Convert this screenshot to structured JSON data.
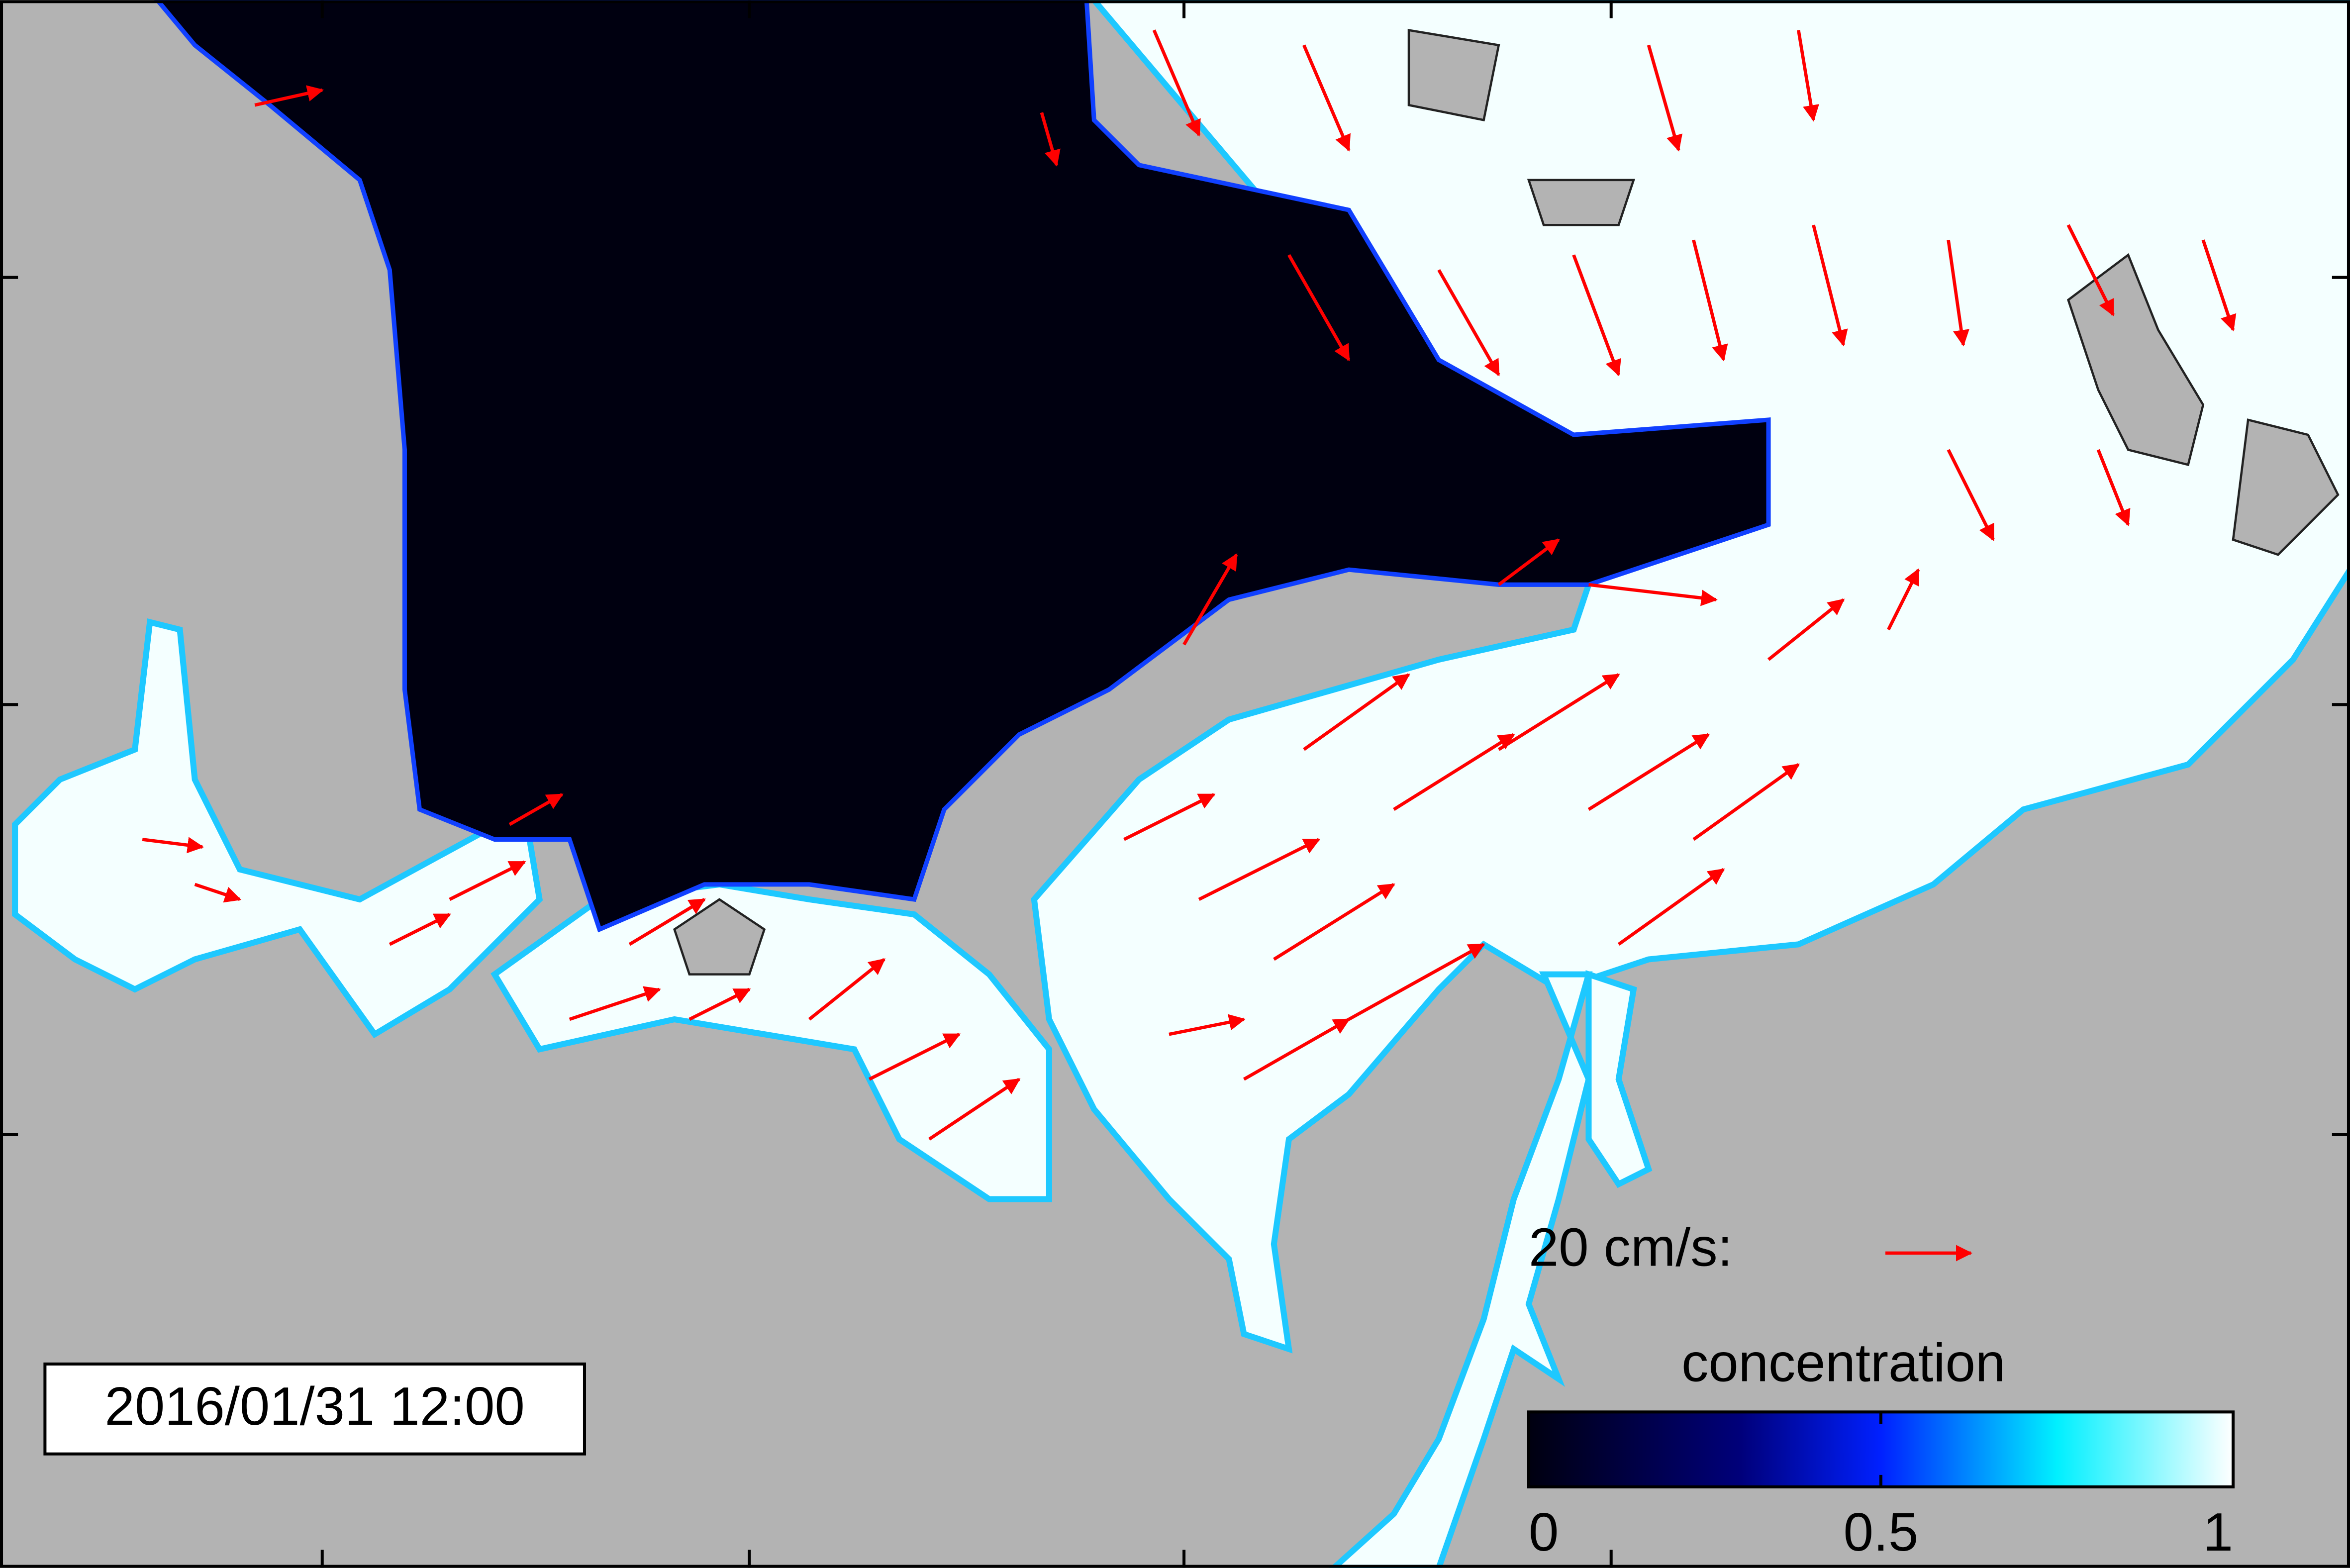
{
  "timestamp": "2016/01/31 12:00",
  "reference_arrow": {
    "label": "20 cm/s:"
  },
  "colorbar": {
    "label": "concentration",
    "lim": [
      0,
      1
    ],
    "ticks": [
      0,
      0.5,
      1
    ]
  }
}
